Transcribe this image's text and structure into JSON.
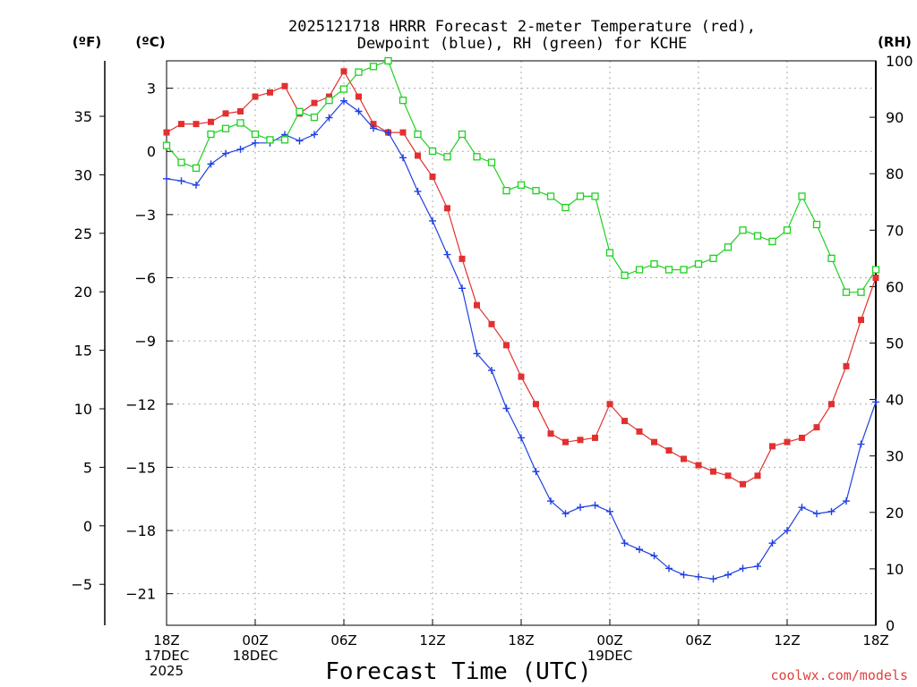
{
  "chart_data": {
    "type": "line",
    "title": [
      "2025121718 HRRR Forecast 2-meter Temperature (red),",
      "Dewpoint (blue), RH (green) for KCHE"
    ],
    "xlabel": "Forecast Time (UTC)",
    "units": {
      "fahrenheit": "(ºF)",
      "celsius": "(ºC)",
      "rh": "(RH)"
    },
    "credit": "coolwx.com/models",
    "x_range_hours": [
      0,
      48
    ],
    "x_ticks": [
      {
        "hour": 0,
        "lines": [
          "18Z",
          "17DEC",
          "2025"
        ]
      },
      {
        "hour": 6,
        "lines": [
          "00Z",
          "18DEC"
        ]
      },
      {
        "hour": 12,
        "lines": [
          "06Z"
        ]
      },
      {
        "hour": 18,
        "lines": [
          "12Z"
        ]
      },
      {
        "hour": 24,
        "lines": [
          "18Z"
        ]
      },
      {
        "hour": 30,
        "lines": [
          "00Z",
          "19DEC"
        ]
      },
      {
        "hour": 36,
        "lines": [
          "06Z"
        ]
      },
      {
        "hour": 42,
        "lines": [
          "12Z"
        ]
      },
      {
        "hour": 48,
        "lines": [
          "18Z"
        ]
      }
    ],
    "celsius_axis": {
      "range": [
        -22.5,
        4.3
      ],
      "ticks": [
        3,
        0,
        -3,
        -6,
        -9,
        -12,
        -15,
        -18,
        -21
      ]
    },
    "fahrenheit_axis": {
      "ticks": [
        35,
        30,
        25,
        20,
        15,
        10,
        5,
        0,
        -5
      ]
    },
    "rh_axis": {
      "range": [
        0,
        100
      ],
      "ticks": [
        0,
        10,
        20,
        30,
        40,
        50,
        60,
        70,
        80,
        90,
        100
      ]
    },
    "series": [
      {
        "name": "2-meter Temperature",
        "color": "#e23030",
        "marker": "filled-square",
        "axis": "celsius",
        "values": [
          0.9,
          1.3,
          1.3,
          1.4,
          1.8,
          1.9,
          2.6,
          2.8,
          3.1,
          1.8,
          2.3,
          2.6,
          3.8,
          2.6,
          1.3,
          0.9,
          0.9,
          -0.2,
          -1.2,
          -2.7,
          -5.1,
          -7.3,
          -8.2,
          -9.2,
          -10.7,
          -12.0,
          -13.4,
          -13.8,
          -13.7,
          -13.6,
          -12.0,
          -12.8,
          -13.3,
          -13.8,
          -14.2,
          -14.6,
          -14.9,
          -15.2,
          -15.4,
          -15.8,
          -15.4,
          -14.0,
          -13.8,
          -13.6,
          -13.1,
          -12.0,
          -10.2,
          -8.0,
          -6.0
        ]
      },
      {
        "name": "Dewpoint",
        "color": "#2040e0",
        "marker": "plus",
        "axis": "celsius",
        "values": [
          -1.3,
          -1.4,
          -1.6,
          -0.6,
          -0.1,
          0.1,
          0.4,
          0.4,
          0.8,
          0.5,
          0.8,
          1.6,
          2.4,
          1.9,
          1.1,
          0.9,
          -0.3,
          -1.9,
          -3.3,
          -4.9,
          -6.5,
          -9.6,
          -10.4,
          -12.2,
          -13.6,
          -15.2,
          -16.6,
          -17.2,
          -16.9,
          -16.8,
          -17.1,
          -18.6,
          -18.9,
          -19.2,
          -19.8,
          -20.1,
          -20.2,
          -20.3,
          -20.1,
          -19.8,
          -19.7,
          -18.6,
          -18.0,
          -16.9,
          -17.2,
          -17.1,
          -16.6,
          -13.9,
          -11.9
        ]
      },
      {
        "name": "RH",
        "color": "#20d020",
        "marker": "open-square",
        "axis": "rh",
        "values": [
          85,
          82,
          81,
          87,
          88,
          89,
          87,
          86,
          86,
          91,
          90,
          93,
          95,
          98,
          99,
          100,
          93,
          87,
          84,
          83,
          87,
          83,
          82,
          77,
          78,
          77,
          76,
          74,
          76,
          76,
          66,
          62,
          63,
          64,
          63,
          63,
          64,
          65,
          67,
          70,
          69,
          68,
          70,
          76,
          71,
          65,
          59,
          59,
          63
        ]
      }
    ]
  }
}
